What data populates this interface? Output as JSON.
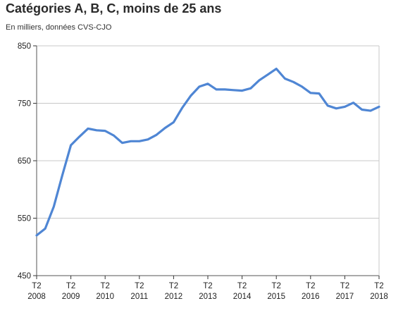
{
  "chart_data": {
    "type": "line",
    "title": "Catégories A, B, C, moins de 25 ans",
    "subtitle": "En milliers, données CVS-CJO",
    "xlabel": "",
    "ylabel": "",
    "ylim": [
      450,
      850
    ],
    "yticks": [
      "450",
      "550",
      "650",
      "750",
      "850"
    ],
    "xtick_labels": [
      {
        "quarter": "T2",
        "year": "2008"
      },
      {
        "quarter": "T2",
        "year": "2009"
      },
      {
        "quarter": "T2",
        "year": "2010"
      },
      {
        "quarter": "T2",
        "year": "2011"
      },
      {
        "quarter": "T2",
        "year": "2012"
      },
      {
        "quarter": "T2",
        "year": "2013"
      },
      {
        "quarter": "T2",
        "year": "2014"
      },
      {
        "quarter": "T2",
        "year": "2015"
      },
      {
        "quarter": "T2",
        "year": "2016"
      },
      {
        "quarter": "T2",
        "year": "2017"
      },
      {
        "quarter": "T2",
        "year": "2018"
      }
    ],
    "line_color": "#4f86d4",
    "series": [
      {
        "name": "Catégories A, B, C, moins de 25 ans",
        "x_quarter_index": [
          0,
          1,
          2,
          3,
          4,
          5,
          6,
          7,
          8,
          9,
          10,
          11,
          12,
          13,
          14,
          15,
          16,
          17,
          18,
          19,
          20,
          21,
          22,
          23,
          24,
          25,
          26,
          27,
          28,
          29,
          30,
          31,
          32,
          33,
          34,
          35,
          36,
          37,
          38,
          39,
          40
        ],
        "values": [
          520,
          532,
          570,
          625,
          677,
          692,
          706,
          703,
          702,
          694,
          681,
          684,
          684,
          687,
          695,
          707,
          717,
          742,
          763,
          779,
          784,
          774,
          774,
          773,
          772,
          776,
          790,
          800,
          810,
          793,
          787,
          779,
          768,
          767,
          746,
          741,
          744,
          751,
          739,
          737,
          744
        ]
      }
    ]
  }
}
